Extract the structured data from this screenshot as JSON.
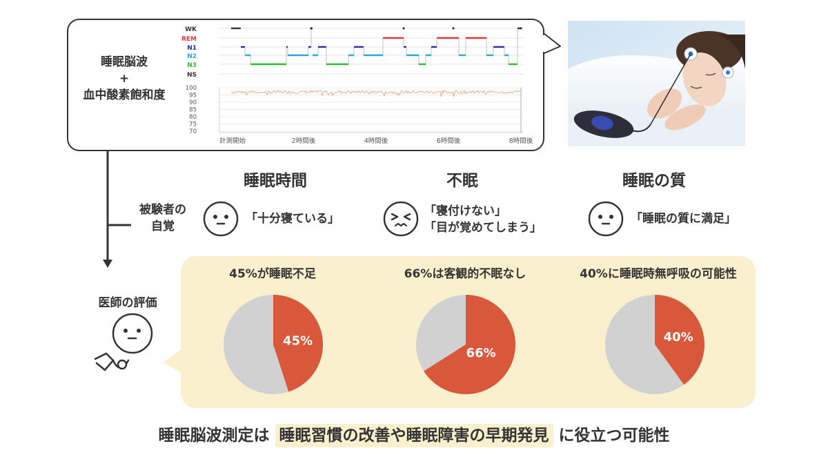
{
  "eeg_box": {
    "label_lines": [
      "睡眠脳波",
      "+",
      "血中酸素飽和度"
    ],
    "stage_labels": [
      {
        "text": "WK",
        "color": "#333333"
      },
      {
        "text": "REM",
        "color": "#e0393b"
      },
      {
        "text": "N1",
        "color": "#2b2b9e"
      },
      {
        "text": "N2",
        "color": "#29a7e0"
      },
      {
        "text": "N3",
        "color": "#2fb82f"
      },
      {
        "text": "NS",
        "color": "#333333"
      }
    ],
    "spo2_ticks": [
      "100",
      "95",
      "90",
      "85",
      "80",
      "75",
      "70"
    ],
    "time_ticks": [
      "計測開始",
      "2時間後",
      "4時間後",
      "6時間後",
      "8時間後"
    ],
    "spo2_color": "#e8915a"
  },
  "columns": [
    {
      "heading": "睡眠時間",
      "quote_lines": [
        "「十分寝ている」"
      ],
      "face": "content-face-icon"
    },
    {
      "heading": "不眠",
      "quote_lines": [
        "「寝付けない」",
        "「目が覚めてしまう」"
      ],
      "face": "distressed-face-icon"
    },
    {
      "heading": "睡眠の質",
      "quote_lines": [
        "「睡眠の質に満足」"
      ],
      "face": "content-face-icon"
    }
  ],
  "self_awareness_label": [
    "被験者の",
    "自覚"
  ],
  "doctor_label": "医師の評価",
  "pies": [
    {
      "title": "45%が睡眠不足",
      "value": 45,
      "label": "45%"
    },
    {
      "title": "66%は客観的不眠なし",
      "value": 66,
      "label": "66%"
    },
    {
      "title": "40%に睡眠時無呼吸の可能性",
      "value": 40,
      "label": "40%"
    }
  ],
  "colors": {
    "pie_highlight": "#d9583b",
    "pie_rest": "#d1d1d1",
    "panel": "#fbf0cd"
  },
  "conclusion": {
    "before": "睡眠脳波測定は",
    "highlight": "睡眠習慣の改善や睡眠障害の早期発見",
    "after": "に役立つ可能性"
  }
}
